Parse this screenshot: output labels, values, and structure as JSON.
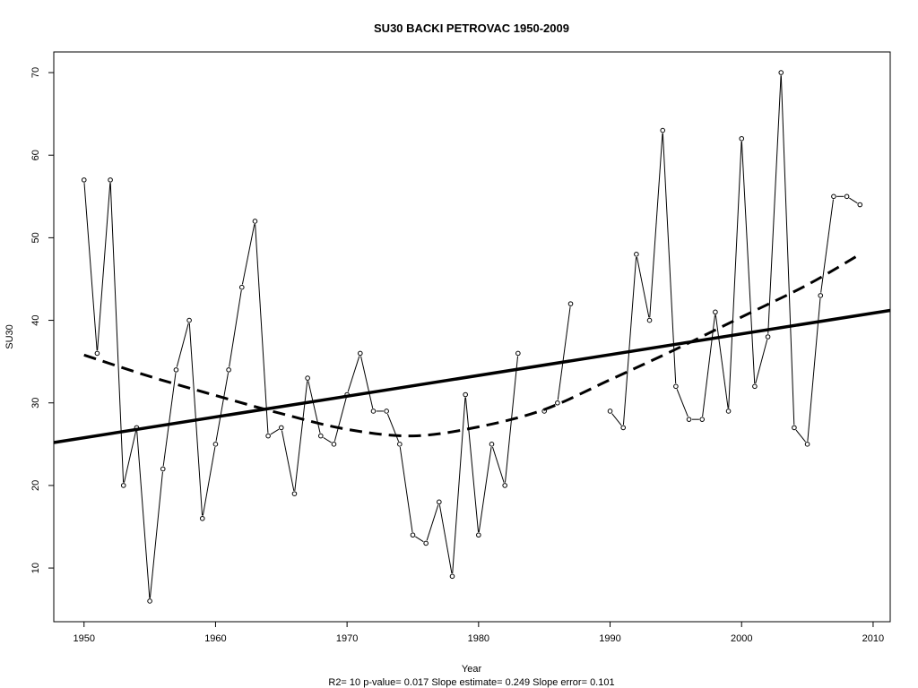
{
  "chart_data": {
    "type": "line",
    "title": "SU30   BACKI PETROVAC 1950-2009",
    "xlabel": "Year",
    "ylabel": "SU30",
    "footer": "R2= 10  p-value= 0.017  Slope estimate= 0.249  Slope error= 0.101",
    "xlim": [
      1947.7,
      2011.3
    ],
    "ylim": [
      3.5,
      72.5
    ],
    "x_ticks": [
      1950,
      1960,
      1970,
      1980,
      1990,
      2000,
      2010
    ],
    "y_ticks": [
      10,
      20,
      30,
      40,
      50,
      60,
      70
    ],
    "grid": false,
    "series": [
      {
        "style": "observed",
        "points": [
          [
            1950,
            57
          ],
          [
            1951,
            36
          ],
          [
            1952,
            57
          ],
          [
            1953,
            20
          ],
          [
            1954,
            27
          ],
          [
            1955,
            6
          ],
          [
            1956,
            22
          ],
          [
            1957,
            34
          ],
          [
            1958,
            40
          ],
          [
            1959,
            16
          ],
          [
            1960,
            25
          ],
          [
            1961,
            34
          ],
          [
            1962,
            44
          ],
          [
            1963,
            52
          ],
          [
            1964,
            26
          ],
          [
            1965,
            27
          ],
          [
            1966,
            19
          ],
          [
            1967,
            33
          ],
          [
            1968,
            26
          ],
          [
            1969,
            25
          ],
          [
            1970,
            31
          ],
          [
            1971,
            36
          ],
          [
            1972,
            29
          ],
          [
            1973,
            29
          ],
          [
            1974,
            25
          ],
          [
            1975,
            14
          ],
          [
            1976,
            13
          ],
          [
            1977,
            18
          ],
          [
            1978,
            9
          ],
          [
            1979,
            31
          ],
          [
            1980,
            14
          ],
          [
            1981,
            25
          ],
          [
            1982,
            20
          ],
          [
            1983,
            36
          ],
          [
            1985,
            29
          ],
          [
            1986,
            30
          ],
          [
            1987,
            42
          ],
          [
            1990,
            29
          ],
          [
            1991,
            27
          ],
          [
            1992,
            48
          ],
          [
            1993,
            40
          ],
          [
            1994,
            63
          ],
          [
            1995,
            32
          ],
          [
            1996,
            28
          ],
          [
            1997,
            28
          ],
          [
            1998,
            41
          ],
          [
            1999,
            29
          ],
          [
            2000,
            62
          ],
          [
            2001,
            32
          ],
          [
            2002,
            38
          ],
          [
            2003,
            70
          ],
          [
            2004,
            27
          ],
          [
            2005,
            25
          ],
          [
            2006,
            43
          ],
          [
            2007,
            55
          ],
          [
            2008,
            55
          ],
          [
            2009,
            54
          ]
        ]
      },
      {
        "style": "linear-trend",
        "points": [
          [
            1947.7,
            25.2
          ],
          [
            2011.3,
            41.2
          ]
        ]
      },
      {
        "style": "smoothed-trend",
        "points": [
          [
            1950,
            35.8
          ],
          [
            1955,
            33.2
          ],
          [
            1960,
            30.9
          ],
          [
            1965,
            28.7
          ],
          [
            1970,
            26.8
          ],
          [
            1975,
            26.0
          ],
          [
            1980,
            27.1
          ],
          [
            1985,
            29.2
          ],
          [
            1990,
            32.8
          ],
          [
            1995,
            36.5
          ],
          [
            2000,
            40.4
          ],
          [
            2005,
            44.3
          ],
          [
            2009,
            48.0
          ]
        ]
      }
    ]
  }
}
